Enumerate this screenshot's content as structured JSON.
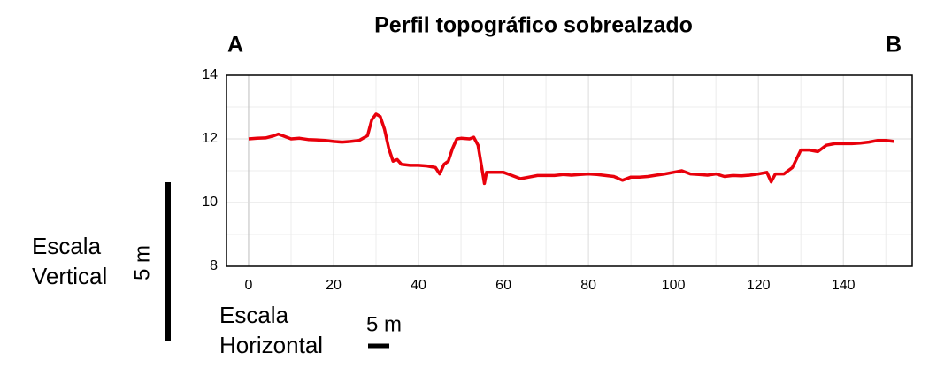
{
  "chart_data": {
    "type": "line",
    "title": "Perfil topográfico sobrealzado",
    "start_label": "A",
    "end_label": "B",
    "x": [
      0,
      2,
      4,
      6,
      7,
      8,
      10,
      12,
      14,
      16,
      18,
      20,
      22,
      24,
      26,
      28,
      29,
      30,
      31,
      32,
      33,
      34,
      35,
      36,
      38,
      40,
      42,
      44,
      45,
      46,
      47,
      48,
      49,
      50,
      52,
      53,
      54,
      55,
      55.5,
      56,
      58,
      60,
      62,
      64,
      66,
      68,
      70,
      72,
      74,
      76,
      78,
      80,
      82,
      84,
      86,
      88,
      90,
      92,
      94,
      96,
      98,
      100,
      102,
      104,
      106,
      108,
      110,
      112,
      114,
      116,
      118,
      120,
      122,
      123,
      124,
      126,
      128,
      130,
      132,
      134,
      136,
      138,
      140,
      142,
      144,
      146,
      148,
      150,
      152
    ],
    "series": [
      {
        "color": "#e8000b",
        "values": [
          12.0,
          12.02,
          12.03,
          12.1,
          12.15,
          12.1,
          12.0,
          12.02,
          11.98,
          11.97,
          11.95,
          11.92,
          11.9,
          11.92,
          11.95,
          12.1,
          12.6,
          12.78,
          12.7,
          12.3,
          11.7,
          11.3,
          11.35,
          11.2,
          11.17,
          11.17,
          11.15,
          11.1,
          10.9,
          11.2,
          11.3,
          11.7,
          12.0,
          12.02,
          12.0,
          12.05,
          11.8,
          11.0,
          10.6,
          10.95,
          10.95,
          10.95,
          10.85,
          10.75,
          10.8,
          10.85,
          10.85,
          10.85,
          10.88,
          10.86,
          10.88,
          10.9,
          10.88,
          10.85,
          10.82,
          10.7,
          10.8,
          10.8,
          10.82,
          10.86,
          10.9,
          10.95,
          11.0,
          10.9,
          10.88,
          10.86,
          10.9,
          10.82,
          10.85,
          10.84,
          10.86,
          10.9,
          10.95,
          10.65,
          10.9,
          10.9,
          11.1,
          11.65,
          11.65,
          11.6,
          11.8,
          11.85,
          11.85,
          11.85,
          11.87,
          11.9,
          11.95,
          11.95,
          11.92
        ]
      }
    ],
    "xlim": [
      -5.2,
      156.2
    ],
    "ylim": [
      8,
      14
    ],
    "xticks": [
      0,
      20,
      40,
      60,
      80,
      100,
      120,
      140
    ],
    "yticks": [
      8,
      10,
      12,
      14
    ],
    "xminor": [
      10,
      30,
      50,
      70,
      90,
      110,
      130,
      150
    ],
    "yminor": [
      9,
      11,
      13
    ],
    "grid": true,
    "scale_bars": [
      {
        "title": [
          "Escala",
          "Vertical"
        ],
        "label": "5 m",
        "value": 5,
        "orientation": "vertical"
      },
      {
        "title": [
          "Escala",
          "Horizontal"
        ],
        "label": "5 m",
        "value": 5,
        "orientation": "horizontal"
      }
    ]
  }
}
